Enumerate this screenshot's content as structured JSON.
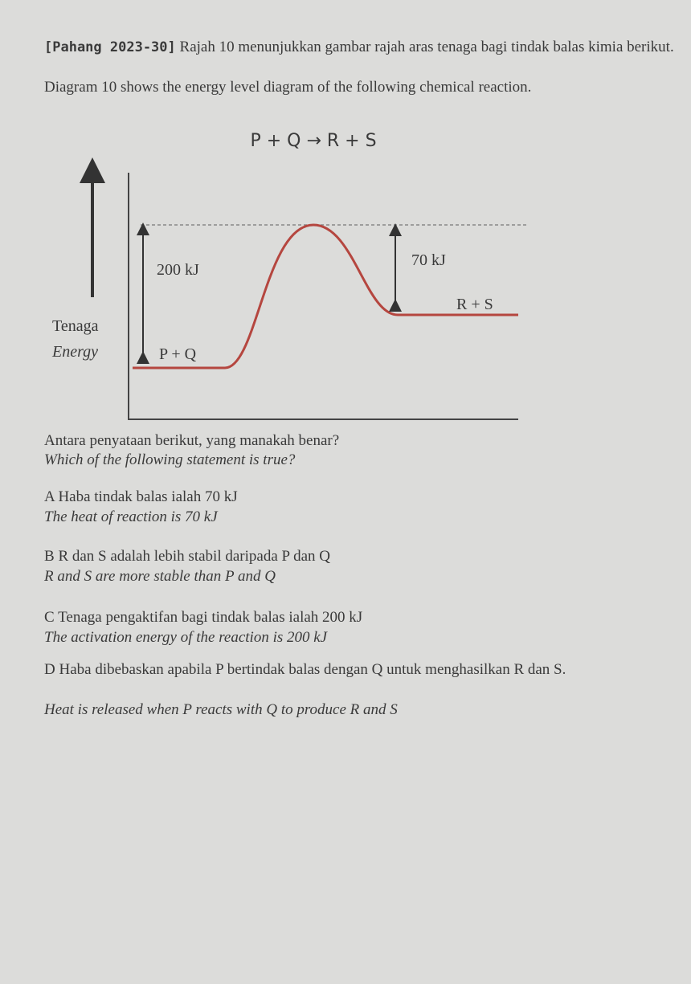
{
  "header": {
    "source": "[Pahang 2023-30]",
    "malay": "Rajah 10 menunjukkan gambar rajah aras tenaga bagi tindak balas kimia berikut.",
    "english": "Diagram 10 shows the energy level diagram of the following chemical reaction."
  },
  "equation": "P + Q → R + S",
  "diagram": {
    "axis_label_malay": "Tenaga",
    "axis_label_english": "Energy",
    "activation_label": "200 kJ",
    "heat_label": "70 kJ",
    "reactants": "P + Q",
    "products": "R + S"
  },
  "question": {
    "malay": "Antara penyataan berikut, yang manakah benar?",
    "english": "Which of the following statement is true?"
  },
  "options": [
    {
      "letter": "A",
      "malay": "Haba tindak balas ialah 70 kJ",
      "english": "The heat of reaction is 70 kJ"
    },
    {
      "letter": "B",
      "malay": "R dan S adalah lebih stabil daripada P dan Q",
      "english": "R and S are more stable than P and Q"
    },
    {
      "letter": "C",
      "malay": "Tenaga pengaktifan bagi tindak balas ialah 200 kJ",
      "english": "The activation energy of the reaction is 200 kJ"
    },
    {
      "letter": "D",
      "malay": "Haba dibebaskan apabila P bertindak balas dengan Q untuk menghasilkan R dan S.",
      "english": "Heat is released when P reacts with Q to produce R and S"
    }
  ]
}
